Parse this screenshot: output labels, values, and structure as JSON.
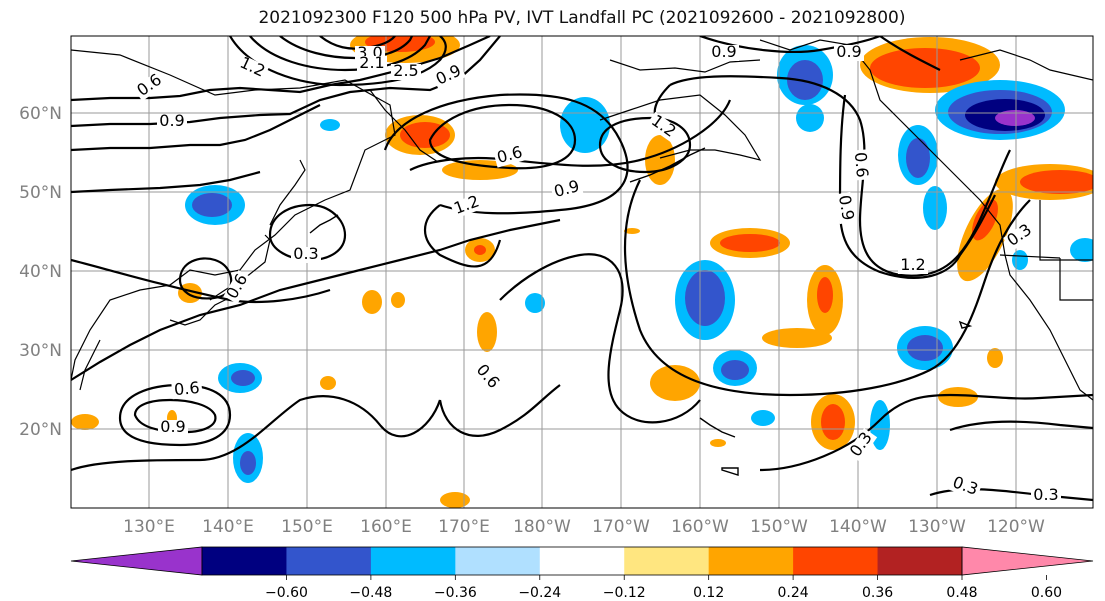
{
  "title": "2021092300 F120 500 hPa PV, IVT Landfall PC (2021092600 - 2021092800)",
  "latitude_labels": [
    "60°N",
    "50°N",
    "40°N",
    "30°N",
    "20°N"
  ],
  "longitude_labels": [
    "130°E",
    "140°E",
    "150°E",
    "160°E",
    "170°E",
    "180°W",
    "170°W",
    "160°W",
    "150°W",
    "140°W",
    "130°W",
    "120°W"
  ],
  "colorbar": {
    "ticks": [
      "−0.60",
      "−0.48",
      "−0.36",
      "−0.24",
      "−0.12",
      "0.12",
      "0.24",
      "0.36",
      "0.48",
      "0.60"
    ],
    "colors": [
      "#9933cc",
      "#000080",
      "#3355cc",
      "#00bbff",
      "#b0e0ff",
      "#ffffff",
      "#ffe680",
      "#ffa500",
      "#ff4500",
      "#b22222",
      "#ff88aa"
    ]
  },
  "contour_labels": [
    "3.0",
    "2.1",
    "2.5",
    "1.2",
    "0.9",
    "0.6",
    "0.9",
    "0.6",
    "1.2",
    "0.9",
    "1.2",
    "0.3",
    "0.6",
    "0.6",
    "0.9",
    "0.9",
    "0.9",
    "0.6",
    "1.2",
    "0.3",
    "0.6",
    "0.9",
    "0.3",
    "0.3",
    "0.3"
  ]
}
